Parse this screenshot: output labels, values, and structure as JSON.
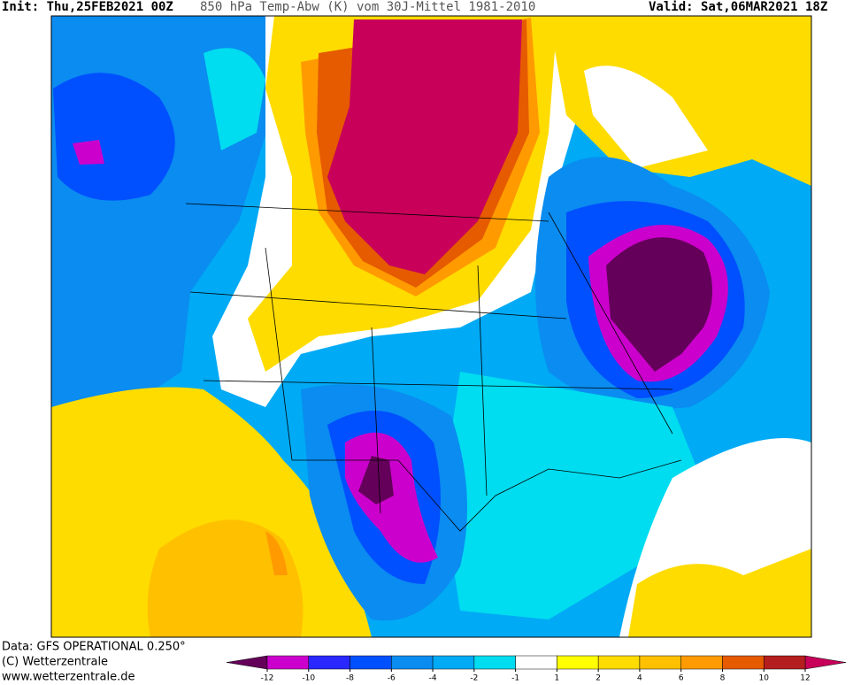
{
  "header": {
    "init": "Init: Thu,25FEB2021 00Z",
    "title": "850 hPa Temp-Abw (K) vom 30J-Mittel 1981-2010",
    "valid": "Valid: Sat,06MAR2021 18Z"
  },
  "footer": {
    "lines": [
      "Data: GFS OPERATIONAL 0.250°",
      "(C) Wetterzentrale",
      "www.wetterzentrale.de"
    ]
  },
  "colorbar": {
    "ticks": [
      -12,
      -10,
      -8,
      -6,
      -4,
      -2,
      -1,
      1,
      2,
      4,
      6,
      8,
      10,
      12
    ],
    "colors": [
      "#cc00cc",
      "#2828ff",
      "#0050ff",
      "#0a8cf0",
      "#00aaf5",
      "#00dcf0",
      "#ffffff",
      "#ffff00",
      "#ffdc00",
      "#ffc000",
      "#ff9b00",
      "#e65a00",
      "#b41e1e"
    ],
    "under_color": "#64005a",
    "over_color": "#c8005a"
  }
}
